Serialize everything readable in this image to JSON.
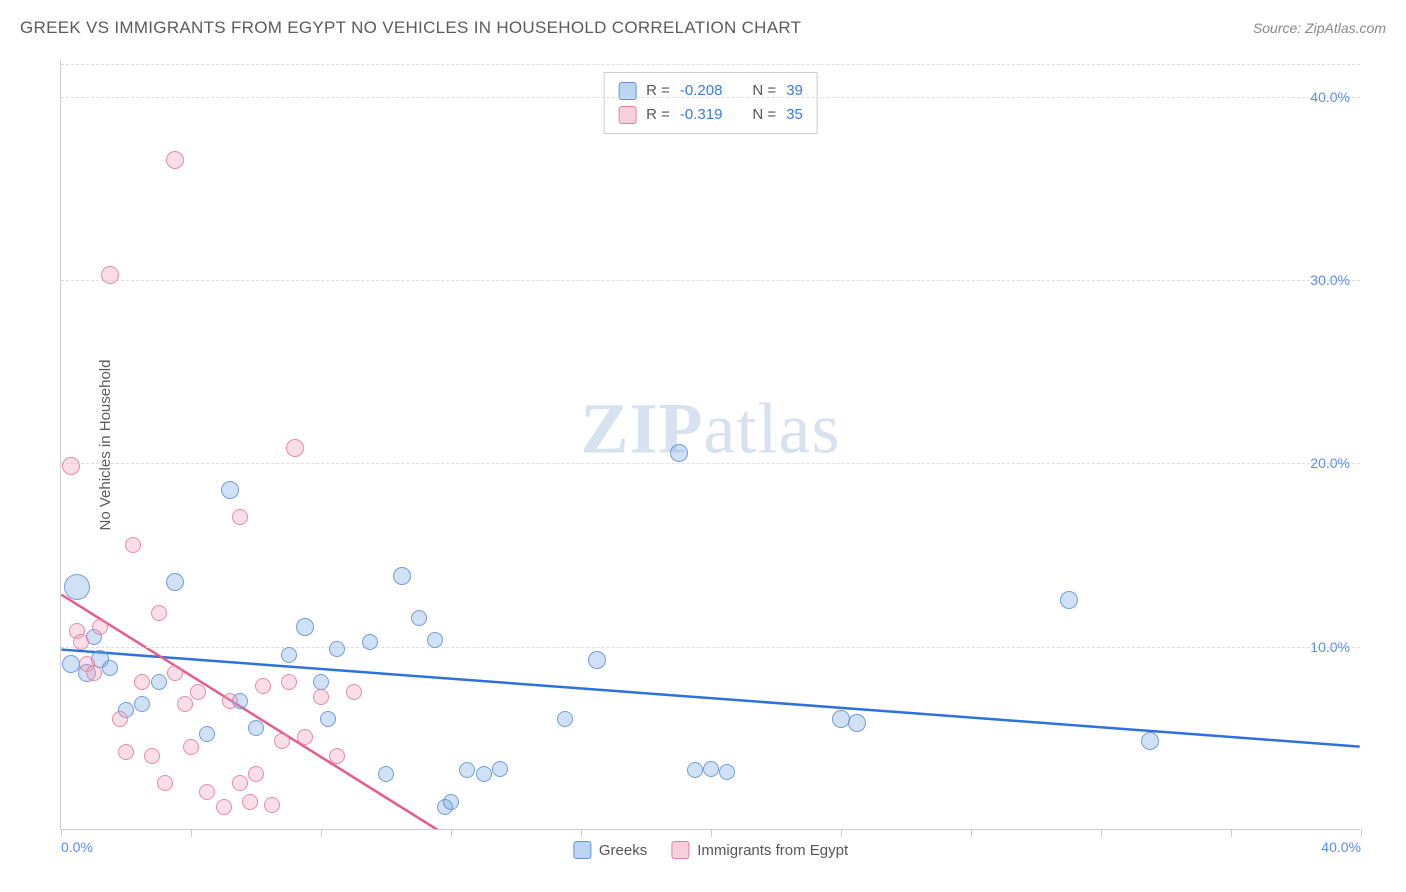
{
  "header": {
    "title": "GREEK VS IMMIGRANTS FROM EGYPT NO VEHICLES IN HOUSEHOLD CORRELATION CHART",
    "source": "Source: ZipAtlas.com"
  },
  "chart": {
    "type": "scatter",
    "ylabel": "No Vehicles in Household",
    "x_range": [
      0,
      40
    ],
    "y_range": [
      0,
      42
    ],
    "x_ticks": [
      0,
      4,
      8,
      12,
      16,
      20,
      24,
      28,
      32,
      36,
      40
    ],
    "x_tick_labels_shown": {
      "0": "0.0%",
      "40": "40.0%"
    },
    "y_ticks": [
      10,
      20,
      30,
      40
    ],
    "y_tick_labels": [
      "10.0%",
      "20.0%",
      "30.0%",
      "40.0%"
    ],
    "grid_color": "#dddddd",
    "axis_color": "#cccccc",
    "background_color": "#ffffff",
    "watermark": "ZIPatlas",
    "series": [
      {
        "name": "Greeks",
        "color_fill": "rgba(120,170,230,0.35)",
        "color_stroke": "rgba(90,140,210,0.8)",
        "trend_color": "#2d72d9",
        "R": "-0.208",
        "N": "39",
        "trend": {
          "x1": 0,
          "y1": 9.8,
          "x2": 40,
          "y2": 4.5
        },
        "points": [
          {
            "x": 0.5,
            "y": 13.2,
            "r": 13
          },
          {
            "x": 0.3,
            "y": 9.0,
            "r": 9
          },
          {
            "x": 0.8,
            "y": 8.5,
            "r": 9
          },
          {
            "x": 1.0,
            "y": 10.5,
            "r": 8
          },
          {
            "x": 1.2,
            "y": 9.3,
            "r": 9
          },
          {
            "x": 1.5,
            "y": 8.8,
            "r": 8
          },
          {
            "x": 2.0,
            "y": 6.5,
            "r": 8
          },
          {
            "x": 2.5,
            "y": 6.8,
            "r": 8
          },
          {
            "x": 3.0,
            "y": 8.0,
            "r": 8
          },
          {
            "x": 3.5,
            "y": 13.5,
            "r": 9
          },
          {
            "x": 4.5,
            "y": 5.2,
            "r": 8
          },
          {
            "x": 5.2,
            "y": 18.5,
            "r": 9
          },
          {
            "x": 5.5,
            "y": 7.0,
            "r": 8
          },
          {
            "x": 6.0,
            "y": 5.5,
            "r": 8
          },
          {
            "x": 7.0,
            "y": 9.5,
            "r": 8
          },
          {
            "x": 7.5,
            "y": 11.0,
            "r": 9
          },
          {
            "x": 8.0,
            "y": 8.0,
            "r": 8
          },
          {
            "x": 8.2,
            "y": 6.0,
            "r": 8
          },
          {
            "x": 8.5,
            "y": 9.8,
            "r": 8
          },
          {
            "x": 9.5,
            "y": 10.2,
            "r": 8
          },
          {
            "x": 10.0,
            "y": 3.0,
            "r": 8
          },
          {
            "x": 10.5,
            "y": 13.8,
            "r": 9
          },
          {
            "x": 11.0,
            "y": 11.5,
            "r": 8
          },
          {
            "x": 11.5,
            "y": 10.3,
            "r": 8
          },
          {
            "x": 12.5,
            "y": 3.2,
            "r": 8
          },
          {
            "x": 13.0,
            "y": 3.0,
            "r": 8
          },
          {
            "x": 13.5,
            "y": 3.3,
            "r": 8
          },
          {
            "x": 11.8,
            "y": 1.2,
            "r": 8
          },
          {
            "x": 12.0,
            "y": 1.5,
            "r": 8
          },
          {
            "x": 15.5,
            "y": 6.0,
            "r": 8
          },
          {
            "x": 16.5,
            "y": 9.2,
            "r": 9
          },
          {
            "x": 19.0,
            "y": 20.5,
            "r": 9
          },
          {
            "x": 19.5,
            "y": 3.2,
            "r": 8
          },
          {
            "x": 20.0,
            "y": 3.3,
            "r": 8
          },
          {
            "x": 20.5,
            "y": 3.1,
            "r": 8
          },
          {
            "x": 24.0,
            "y": 6.0,
            "r": 9
          },
          {
            "x": 24.5,
            "y": 5.8,
            "r": 9
          },
          {
            "x": 31.0,
            "y": 12.5,
            "r": 9
          },
          {
            "x": 33.5,
            "y": 4.8,
            "r": 9
          }
        ]
      },
      {
        "name": "Immigrants from Egypt",
        "color_fill": "rgba(240,160,185,0.35)",
        "color_stroke": "rgba(225,120,155,0.8)",
        "trend_color": "#e85a8a",
        "R": "-0.319",
        "N": "35",
        "trend": {
          "x1": 0,
          "y1": 12.8,
          "x2": 12.0,
          "y2": -0.5
        },
        "points": [
          {
            "x": 0.3,
            "y": 19.8,
            "r": 9
          },
          {
            "x": 0.5,
            "y": 10.8,
            "r": 8
          },
          {
            "x": 0.6,
            "y": 10.2,
            "r": 8
          },
          {
            "x": 0.8,
            "y": 9.0,
            "r": 8
          },
          {
            "x": 1.0,
            "y": 8.5,
            "r": 8
          },
          {
            "x": 1.2,
            "y": 11.0,
            "r": 8
          },
          {
            "x": 1.5,
            "y": 30.2,
            "r": 9
          },
          {
            "x": 1.8,
            "y": 6.0,
            "r": 8
          },
          {
            "x": 2.0,
            "y": 4.2,
            "r": 8
          },
          {
            "x": 2.2,
            "y": 15.5,
            "r": 8
          },
          {
            "x": 2.5,
            "y": 8.0,
            "r": 8
          },
          {
            "x": 2.8,
            "y": 4.0,
            "r": 8
          },
          {
            "x": 3.0,
            "y": 11.8,
            "r": 8
          },
          {
            "x": 3.2,
            "y": 2.5,
            "r": 8
          },
          {
            "x": 3.5,
            "y": 36.5,
            "r": 9
          },
          {
            "x": 3.5,
            "y": 8.5,
            "r": 8
          },
          {
            "x": 3.8,
            "y": 6.8,
            "r": 8
          },
          {
            "x": 4.0,
            "y": 4.5,
            "r": 8
          },
          {
            "x": 4.2,
            "y": 7.5,
            "r": 8
          },
          {
            "x": 4.5,
            "y": 2.0,
            "r": 8
          },
          {
            "x": 5.0,
            "y": 1.2,
            "r": 8
          },
          {
            "x": 5.2,
            "y": 7.0,
            "r": 8
          },
          {
            "x": 5.5,
            "y": 2.5,
            "r": 8
          },
          {
            "x": 5.5,
            "y": 17.0,
            "r": 8
          },
          {
            "x": 5.8,
            "y": 1.5,
            "r": 8
          },
          {
            "x": 6.0,
            "y": 3.0,
            "r": 8
          },
          {
            "x": 6.2,
            "y": 7.8,
            "r": 8
          },
          {
            "x": 6.5,
            "y": 1.3,
            "r": 8
          },
          {
            "x": 6.8,
            "y": 4.8,
            "r": 8
          },
          {
            "x": 7.0,
            "y": 8.0,
            "r": 8
          },
          {
            "x": 7.2,
            "y": 20.8,
            "r": 9
          },
          {
            "x": 7.5,
            "y": 5.0,
            "r": 8
          },
          {
            "x": 8.0,
            "y": 7.2,
            "r": 8
          },
          {
            "x": 8.5,
            "y": 4.0,
            "r": 8
          },
          {
            "x": 9.0,
            "y": 7.5,
            "r": 8
          }
        ]
      }
    ],
    "legend_top": {
      "r_label": "R =",
      "n_label": "N ="
    },
    "legend_bottom": [
      {
        "swatch": "blue",
        "label": "Greeks"
      },
      {
        "swatch": "pink",
        "label": "Immigrants from Egypt"
      }
    ]
  }
}
